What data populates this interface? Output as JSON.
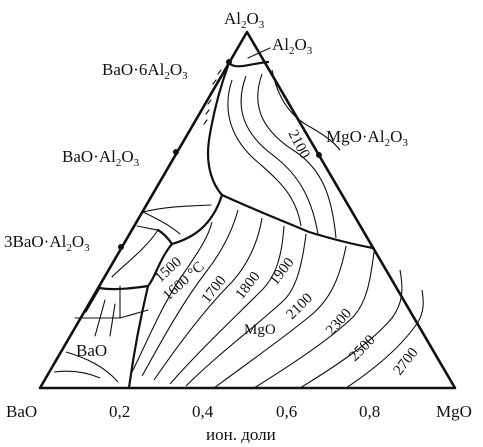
{
  "vertices": {
    "top": {
      "base": "Al",
      "sub1": "2",
      "mid": "O",
      "sub2": "3"
    },
    "left": "BaO",
    "right": "MgO"
  },
  "compounds": [
    {
      "id": "ba6al",
      "pre": "BaO·6Al",
      "sub1": "2",
      "mid": "O",
      "sub2": "3"
    },
    {
      "id": "bal",
      "pre": "BaO·Al",
      "sub1": "2",
      "mid": "O",
      "sub2": "3"
    },
    {
      "id": "ba3al",
      "pre": "3BaO·Al",
      "sub1": "2",
      "mid": "O",
      "sub2": "3"
    },
    {
      "id": "mgal",
      "pre": "MgO·Al",
      "sub1": "2",
      "mid": "O",
      "sub2": "3"
    }
  ],
  "fields": {
    "al2o3": {
      "base": "Al",
      "sub1": "2",
      "mid": "O",
      "sub2": "3"
    },
    "mgo": "MgO",
    "bao": "BaO"
  },
  "isotherms": {
    "t2100_top": "2100",
    "t1500": "1500",
    "t1600": "1600 °C",
    "t1700": "1700",
    "t1800": "1800",
    "t1900": "1900",
    "t2100": "2100",
    "t2300": "2300",
    "t2500": "2500",
    "t2700": "2700"
  },
  "axis": {
    "ticks": [
      "0,2",
      "0,4",
      "0,6",
      "0,8"
    ],
    "xlabel": "ион. доли"
  }
}
